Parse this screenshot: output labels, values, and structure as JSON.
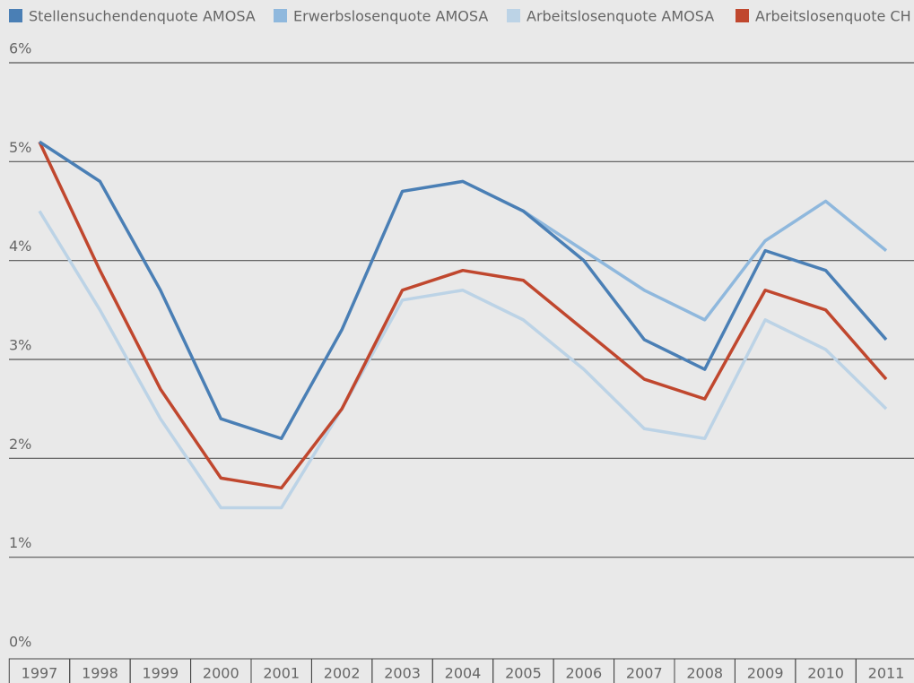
{
  "chart_data": {
    "type": "line",
    "categories": [
      "1997",
      "1998",
      "1999",
      "2000",
      "2001",
      "2002",
      "2003",
      "2004",
      "2005",
      "2006",
      "2007",
      "2008",
      "2009",
      "2010",
      "2011"
    ],
    "series": [
      {
        "name": "Stellensuchendenquote AMOSA",
        "color": "#4a7fb5",
        "values": [
          5.2,
          4.8,
          3.7,
          2.4,
          2.2,
          3.3,
          4.7,
          4.8,
          4.5,
          4.0,
          3.2,
          2.9,
          4.1,
          3.9,
          3.2
        ]
      },
      {
        "name": "Erwerbslosenquote AMOSA",
        "color": "#8fb8dd",
        "values": [
          null,
          null,
          null,
          null,
          null,
          null,
          null,
          null,
          4.5,
          4.1,
          3.7,
          3.4,
          4.2,
          4.6,
          4.1
        ]
      },
      {
        "name": "Arbeitslosenquote AMOSA",
        "color": "#bcd3e6",
        "values": [
          4.5,
          3.5,
          2.4,
          1.5,
          1.5,
          2.5,
          3.6,
          3.7,
          3.4,
          2.9,
          2.3,
          2.2,
          3.4,
          3.1,
          2.5
        ]
      },
      {
        "name": "Arbeitslosenquote CH",
        "color": "#c0472e",
        "values": [
          5.2,
          3.9,
          2.7,
          1.8,
          1.7,
          2.5,
          3.7,
          3.9,
          3.8,
          3.3,
          2.8,
          2.6,
          3.7,
          3.5,
          2.8
        ]
      }
    ],
    "ylim": [
      0,
      6
    ],
    "yticks": [
      {
        "value": 0,
        "label": "0%"
      },
      {
        "value": 1,
        "label": "1%"
      },
      {
        "value": 2,
        "label": "2%"
      },
      {
        "value": 3,
        "label": "3%"
      },
      {
        "value": 4,
        "label": "4%"
      },
      {
        "value": 5,
        "label": "5%"
      },
      {
        "value": 6,
        "label": "6%"
      }
    ],
    "grid": true
  }
}
